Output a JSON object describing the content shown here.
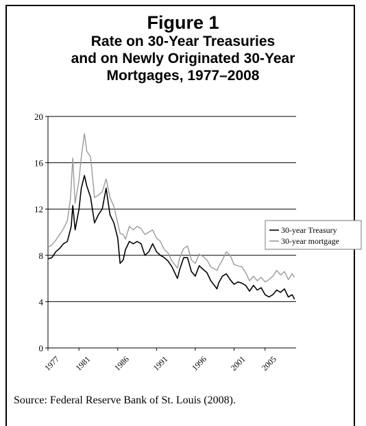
{
  "figure_label": "Figure 1",
  "title_lines": [
    "Rate on 30-Year Treasuries",
    "and on Newly Originated 30-Year",
    "Mortgages, 1977–2008"
  ],
  "source_note": "Source: Federal Reserve Bank of St. Louis (2008).",
  "chart_data": {
    "type": "line",
    "title": "Rate on 30-Year Treasuries and on Newly Originated 30-Year Mortgages, 1977–2008",
    "xlabel": "",
    "ylabel": "",
    "xlim": [
      1977,
      2009
    ],
    "ylim": [
      0,
      20
    ],
    "y_ticks": [
      0,
      4,
      8,
      12,
      16,
      20
    ],
    "x_tick_labels": [
      "1977",
      "1981",
      "1986",
      "1991",
      "1996",
      "2001",
      "2005"
    ],
    "x_tick_positions": [
      1977,
      1981,
      1986,
      1991,
      1996,
      2001,
      2005
    ],
    "grid": "horizontal",
    "legend": "right",
    "series": [
      {
        "name": "30-year Treasury",
        "color": "#000000",
        "x": [
          1977.0,
          1977.5,
          1978.0,
          1978.5,
          1979.0,
          1979.5,
          1980.0,
          1980.2,
          1980.5,
          1981.0,
          1981.3,
          1981.7,
          1982.0,
          1982.5,
          1983.0,
          1983.5,
          1984.0,
          1984.5,
          1985.0,
          1985.5,
          1986.0,
          1986.3,
          1986.7,
          1987.0,
          1987.5,
          1988.0,
          1988.5,
          1989.0,
          1989.5,
          1990.0,
          1990.5,
          1991.0,
          1991.5,
          1992.0,
          1992.5,
          1993.0,
          1993.7,
          1994.0,
          1994.5,
          1995.0,
          1995.5,
          1996.0,
          1996.5,
          1997.0,
          1997.5,
          1998.0,
          1998.8,
          1999.0,
          1999.5,
          2000.0,
          2000.5,
          2001.0,
          2001.5,
          2002.0,
          2002.5,
          2003.0,
          2003.5,
          2004.0,
          2004.5,
          2005.0,
          2005.5,
          2006.0,
          2006.5,
          2007.0,
          2007.5,
          2008.0,
          2008.5,
          2008.8
        ],
        "values": [
          7.7,
          7.8,
          8.3,
          8.6,
          9.0,
          9.2,
          10.5,
          12.3,
          10.2,
          12.0,
          13.8,
          14.9,
          14.0,
          13.0,
          10.8,
          11.5,
          12.0,
          13.8,
          11.5,
          10.8,
          9.5,
          7.3,
          7.6,
          8.5,
          9.2,
          9.0,
          9.2,
          9.0,
          8.0,
          8.3,
          9.0,
          8.3,
          8.0,
          7.8,
          7.5,
          7.0,
          6.0,
          6.8,
          7.8,
          7.8,
          6.6,
          6.2,
          7.1,
          6.8,
          6.5,
          5.8,
          5.1,
          5.6,
          6.2,
          6.4,
          5.9,
          5.5,
          5.7,
          5.6,
          5.4,
          4.9,
          5.4,
          5.0,
          5.2,
          4.6,
          4.4,
          4.6,
          5.0,
          4.8,
          5.1,
          4.4,
          4.6,
          4.2
        ]
      },
      {
        "name": "30-year mortgage",
        "color": "#9a9a9a",
        "x": [
          1977.0,
          1977.5,
          1978.0,
          1978.5,
          1979.0,
          1979.5,
          1979.9,
          1980.2,
          1980.5,
          1981.0,
          1981.3,
          1981.7,
          1982.0,
          1982.5,
          1983.0,
          1983.5,
          1984.0,
          1984.5,
          1985.0,
          1985.5,
          1986.0,
          1986.3,
          1986.7,
          1987.0,
          1987.5,
          1988.0,
          1988.5,
          1989.0,
          1989.5,
          1990.0,
          1990.5,
          1991.0,
          1991.5,
          1992.0,
          1992.5,
          1993.0,
          1993.7,
          1994.0,
          1994.5,
          1995.0,
          1995.5,
          1996.0,
          1996.5,
          1997.0,
          1997.5,
          1998.0,
          1998.8,
          1999.0,
          1999.5,
          2000.0,
          2000.5,
          2001.0,
          2001.5,
          2002.0,
          2002.5,
          2003.0,
          2003.5,
          2004.0,
          2004.5,
          2005.0,
          2005.5,
          2006.0,
          2006.5,
          2007.0,
          2007.5,
          2008.0,
          2008.5,
          2008.8
        ],
        "values": [
          8.7,
          8.9,
          9.3,
          9.8,
          10.3,
          11.0,
          12.9,
          16.4,
          12.5,
          14.5,
          16.5,
          18.5,
          17.0,
          16.5,
          13.0,
          13.2,
          13.5,
          14.6,
          13.0,
          12.2,
          10.8,
          9.9,
          9.8,
          9.4,
          10.5,
          10.2,
          10.5,
          10.3,
          9.8,
          10.0,
          10.2,
          9.5,
          9.2,
          8.5,
          8.2,
          7.5,
          6.9,
          7.8,
          8.6,
          8.8,
          7.6,
          7.3,
          8.1,
          7.9,
          7.6,
          7.0,
          6.7,
          7.0,
          7.6,
          8.3,
          8.0,
          7.2,
          7.1,
          7.0,
          6.5,
          5.8,
          6.2,
          5.8,
          6.1,
          5.7,
          5.9,
          6.2,
          6.7,
          6.3,
          6.6,
          5.9,
          6.4,
          6.1
        ]
      }
    ]
  }
}
